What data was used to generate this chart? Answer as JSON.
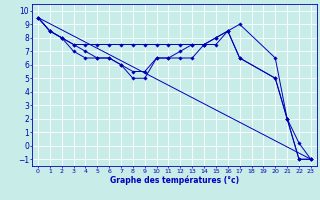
{
  "xlabel": "Graphe des températures (°c)",
  "background_color": "#c8ece8",
  "line_color": "#0000bb",
  "grid_color": "#aadddd",
  "xlim": [
    -0.5,
    23.5
  ],
  "ylim": [
    -1.5,
    10.5
  ],
  "xticks": [
    0,
    1,
    2,
    3,
    4,
    5,
    6,
    7,
    8,
    9,
    10,
    11,
    12,
    13,
    14,
    15,
    16,
    17,
    18,
    19,
    20,
    21,
    22,
    23
  ],
  "yticks": [
    -1,
    0,
    1,
    2,
    3,
    4,
    5,
    6,
    7,
    8,
    9,
    10
  ],
  "series": [
    {
      "x": [
        0,
        23
      ],
      "y": [
        9.5,
        -1.0
      ],
      "has_markers": false
    },
    {
      "x": [
        0,
        1,
        2,
        3,
        4,
        5,
        6,
        7,
        8,
        9,
        10,
        11,
        12,
        13,
        14,
        15,
        16,
        17,
        20,
        21,
        22,
        23
      ],
      "y": [
        9.5,
        8.5,
        8.0,
        7.5,
        7.5,
        7.5,
        7.5,
        7.5,
        7.5,
        7.5,
        7.5,
        7.5,
        7.5,
        7.5,
        7.5,
        8.0,
        8.5,
        9.0,
        6.5,
        2.0,
        -1.0,
        -1.0
      ],
      "has_markers": true
    },
    {
      "x": [
        0,
        1,
        2,
        3,
        4,
        5,
        6,
        7,
        8,
        9,
        10,
        11,
        12,
        13,
        14,
        15,
        16,
        17,
        20,
        21,
        22,
        23
      ],
      "y": [
        9.5,
        8.5,
        8.0,
        7.5,
        7.0,
        6.5,
        6.5,
        6.0,
        5.5,
        5.5,
        6.5,
        6.5,
        7.0,
        7.5,
        7.5,
        7.5,
        8.5,
        6.5,
        5.0,
        2.0,
        -1.0,
        -1.0
      ],
      "has_markers": true
    },
    {
      "x": [
        0,
        1,
        2,
        3,
        4,
        5,
        6,
        7,
        8,
        9,
        10,
        11,
        12,
        13,
        14,
        15,
        16,
        17,
        20,
        21,
        22,
        23
      ],
      "y": [
        9.5,
        8.5,
        8.0,
        7.0,
        6.5,
        6.5,
        6.5,
        6.0,
        5.0,
        5.0,
        6.5,
        6.5,
        6.5,
        6.5,
        7.5,
        8.0,
        8.5,
        6.5,
        5.0,
        2.0,
        0.2,
        -1.0
      ],
      "has_markers": true
    }
  ]
}
